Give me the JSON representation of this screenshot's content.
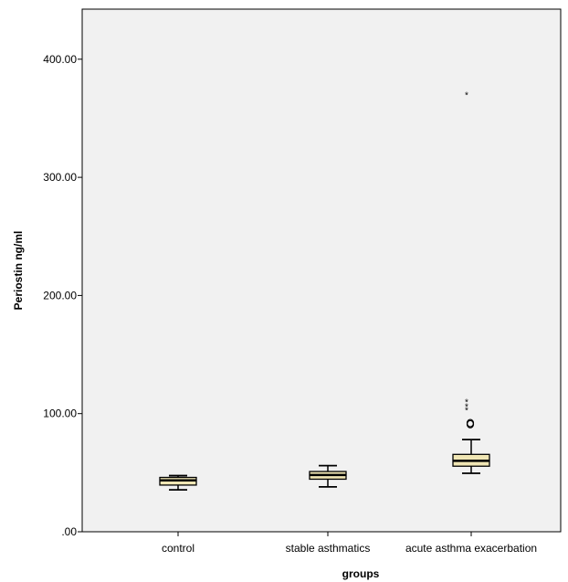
{
  "chart_data": {
    "type": "box",
    "title": "",
    "xlabel": "groups",
    "ylabel": "Periostin ng/ml",
    "ylim": [
      0,
      440
    ],
    "yticks": [
      0,
      100,
      200,
      300,
      400
    ],
    "ytick_labels": [
      ".00",
      "100.00",
      "200.00",
      "300.00",
      "400.00"
    ],
    "categories": [
      "control",
      "stable asthmatics",
      "acute asthma exacerbation"
    ],
    "boxes": [
      {
        "category": "control",
        "whisker_low": 35.5,
        "q1": 39.5,
        "median": 43.5,
        "q3": 46,
        "whisker_high": 47.5,
        "outliers": [],
        "extremes": []
      },
      {
        "category": "stable asthmatics",
        "whisker_low": 38,
        "q1": 44.5,
        "median": 48,
        "q3": 51,
        "whisker_high": 56,
        "outliers": [],
        "extremes": []
      },
      {
        "category": "acute asthma exacerbation",
        "whisker_low": 49.5,
        "q1": 55.5,
        "median": 60,
        "q3": 65.5,
        "whisker_high": 78,
        "outliers": [
          91,
          92
        ],
        "extremes": [
          104,
          107,
          111,
          371
        ]
      }
    ],
    "box_color": "#f0e6b4",
    "plot_background": "#f1f1f1",
    "grid": false,
    "legend": "none"
  }
}
